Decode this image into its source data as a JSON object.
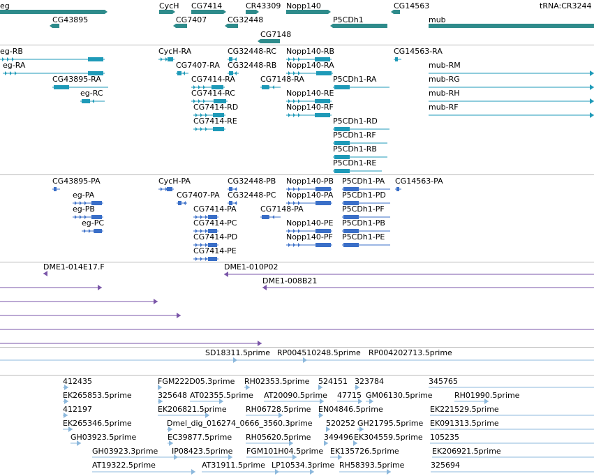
{
  "colors": {
    "gene": "#2e8b8b",
    "mrna": "#1e9ab8",
    "protein": "#3a6fc8",
    "bac": "#7a55a8",
    "est": "#8cb8dc"
  },
  "tracks": [
    {
      "name": "gene-track",
      "color": "gene",
      "features": [
        {
          "label": "eg"
        },
        {
          "label": "CG43895"
        },
        {
          "label": "CycH"
        },
        {
          "label": "CG7414"
        },
        {
          "label": "CG7407"
        },
        {
          "label": "CR43309"
        },
        {
          "label": "CG32448"
        },
        {
          "label": "Nopp140"
        },
        {
          "label": "CG7148"
        },
        {
          "label": "P5CDh1"
        },
        {
          "label": "CG14563"
        },
        {
          "label": "mub"
        },
        {
          "label": "tRNA:CR3244"
        }
      ]
    },
    {
      "name": "mrna-track",
      "color": "mrna",
      "features": [
        {
          "label": "eg-RB"
        },
        {
          "label": "eg-RA"
        },
        {
          "label": "CG43895-RA"
        },
        {
          "label": "eg-RC"
        },
        {
          "label": "CycH-RA"
        },
        {
          "label": "CG7407-RA"
        },
        {
          "label": "CG32448-RC"
        },
        {
          "label": "CG32448-RB"
        },
        {
          "label": "CG7414-RA"
        },
        {
          "label": "CG7414-RC"
        },
        {
          "label": "CG7414-RD"
        },
        {
          "label": "CG7414-RE"
        },
        {
          "label": "CG7148-RA"
        },
        {
          "label": "Nopp140-RB"
        },
        {
          "label": "Nopp140-RA"
        },
        {
          "label": "Nopp140-RE"
        },
        {
          "label": "Nopp140-RF"
        },
        {
          "label": "P5CDh1-RA"
        },
        {
          "label": "P5CDh1-RD"
        },
        {
          "label": "P5CDh1-RF"
        },
        {
          "label": "P5CDh1-RB"
        },
        {
          "label": "P5CDh1-RE"
        },
        {
          "label": "CG14563-RA"
        },
        {
          "label": "mub-RM"
        },
        {
          "label": "mub-RG"
        },
        {
          "label": "mub-RH"
        },
        {
          "label": "mub-RF"
        }
      ]
    },
    {
      "name": "protein-track",
      "color": "protein",
      "features": [
        {
          "label": "CG43895-PA"
        },
        {
          "label": "eg-PA"
        },
        {
          "label": "eg-PB"
        },
        {
          "label": "eg-PC"
        },
        {
          "label": "CycH-PA"
        },
        {
          "label": "CG7407-PA"
        },
        {
          "label": "CG32448-PB"
        },
        {
          "label": "CG32448-PC"
        },
        {
          "label": "CG7414-PA"
        },
        {
          "label": "CG7414-PC"
        },
        {
          "label": "CG7414-PD"
        },
        {
          "label": "CG7414-PE"
        },
        {
          "label": "CG7148-PA"
        },
        {
          "label": "Nopp140-PB"
        },
        {
          "label": "Nopp140-PA"
        },
        {
          "label": "Nopp140-PE"
        },
        {
          "label": "Nopp140-PF"
        },
        {
          "label": "P5CDh1-PA"
        },
        {
          "label": "P5CDh1-PD"
        },
        {
          "label": "P5CDh1-PF"
        },
        {
          "label": "P5CDh1-PB"
        },
        {
          "label": "P5CDh1-PE"
        },
        {
          "label": "CG14563-PA"
        }
      ]
    },
    {
      "name": "bac-track",
      "color": "bac",
      "features": [
        {
          "label": "DME1-014E17.F"
        },
        {
          "label": "DME1-010P02"
        },
        {
          "label": "DME1-008B21"
        },
        {
          "label": ""
        },
        {
          "label": ""
        },
        {
          "label": ""
        },
        {
          "label": ""
        },
        {
          "label": ""
        }
      ]
    },
    {
      "name": "est-track-1",
      "color": "est",
      "features": [
        {
          "label": ""
        },
        {
          "label": "SD18311.5prime"
        },
        {
          "label": "RP004510248.5prime"
        },
        {
          "label": "RP004202713.5prime"
        }
      ]
    },
    {
      "name": "est-track-2",
      "color": "est",
      "features": [
        {
          "label": "412435"
        },
        {
          "label": "FGM222D05.3prime"
        },
        {
          "label": "RH02353.5prime"
        },
        {
          "label": "524151"
        },
        {
          "label": "323784"
        },
        {
          "label": "345765"
        },
        {
          "label": "EK265853.5prime"
        },
        {
          "label": "325648"
        },
        {
          "label": "AT02355.5prime"
        },
        {
          "label": "AT20090.5prime"
        },
        {
          "label": "47715"
        },
        {
          "label": "GM06130.5prime"
        },
        {
          "label": "RH01990.5prime"
        },
        {
          "label": "412197"
        },
        {
          "label": "EK206821.5prime"
        },
        {
          "label": "RH06728.5prime"
        },
        {
          "label": "EN04846.5prime"
        },
        {
          "label": "EK221529.5prime"
        },
        {
          "label": "EK265346.5prime"
        },
        {
          "label": "Dmel_dig_016274_0666_3560.3prime"
        },
        {
          "label": "520252"
        },
        {
          "label": "GH21795.5prime"
        },
        {
          "label": "EK091313.5prime"
        },
        {
          "label": "GH03923.5prime"
        },
        {
          "label": "EC39877.5prime"
        },
        {
          "label": "RH05620.5prime"
        },
        {
          "label": "349496"
        },
        {
          "label": "EK304559.5prime"
        },
        {
          "label": "105235"
        },
        {
          "label": "GH03923.3prime"
        },
        {
          "label": "IP08423.5prime"
        },
        {
          "label": "FGM101H04.5prime"
        },
        {
          "label": "EK135726.5prime"
        },
        {
          "label": "EK206921.5prime"
        },
        {
          "label": "AT19322.5prime"
        },
        {
          "label": "AT31911.5prime"
        },
        {
          "label": "LP10534.3prime"
        },
        {
          "label": "RH58393.5prime"
        },
        {
          "label": "325694"
        }
      ]
    }
  ]
}
